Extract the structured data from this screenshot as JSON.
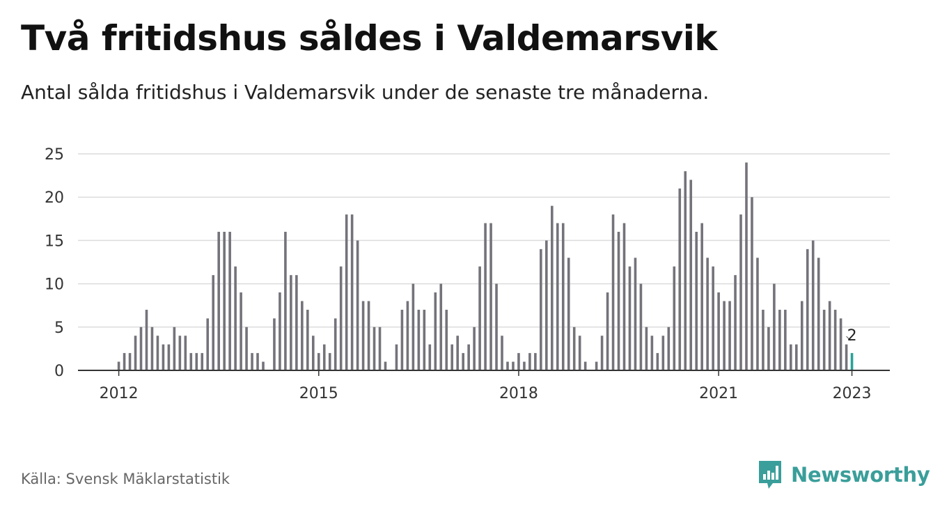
{
  "title": "Två fritidshus såldes i Valdemarsvik",
  "subtitle": "Antal sålda fritidshus i Valdemarsvik under de senaste tre månaderna.",
  "source": "Källa: Svensk Mäklarstatistik",
  "brand": {
    "name": "Newsworthy",
    "icon": "newsworthy-logo-icon",
    "color": "#3a9e9a"
  },
  "colors": {
    "bar": "#74737a",
    "highlight": "#2aa198",
    "grid": "#dcdcdc",
    "axis": "#333333"
  },
  "chart_data": {
    "type": "bar",
    "x_start": "2012-01",
    "x_unit": "month",
    "x_ticks": [
      "2012",
      "2015",
      "2018",
      "2021",
      "2023"
    ],
    "y_ticks": [
      0,
      5,
      10,
      15,
      20,
      25
    ],
    "ylim": [
      0,
      25
    ],
    "grid": true,
    "values": [
      1,
      2,
      2,
      4,
      5,
      7,
      5,
      4,
      3,
      3,
      5,
      4,
      4,
      2,
      2,
      2,
      6,
      11,
      16,
      16,
      16,
      12,
      9,
      5,
      2,
      2,
      1,
      0,
      6,
      9,
      16,
      11,
      11,
      8,
      7,
      4,
      2,
      3,
      2,
      6,
      12,
      18,
      18,
      15,
      8,
      8,
      5,
      5,
      1,
      0,
      3,
      7,
      8,
      10,
      7,
      7,
      3,
      9,
      10,
      7,
      3,
      4,
      2,
      3,
      5,
      12,
      17,
      17,
      10,
      4,
      1,
      1,
      2,
      1,
      2,
      2,
      14,
      15,
      19,
      17,
      17,
      13,
      5,
      4,
      1,
      0,
      1,
      4,
      9,
      18,
      16,
      17,
      12,
      13,
      10,
      5,
      4,
      2,
      4,
      5,
      12,
      21,
      23,
      22,
      16,
      17,
      13,
      12,
      9,
      8,
      8,
      11,
      18,
      24,
      20,
      13,
      7,
      5,
      10,
      7,
      7,
      3,
      3,
      8,
      14,
      15,
      13,
      7,
      8,
      7,
      6,
      3,
      2
    ],
    "highlight_last": true,
    "last_label": "2"
  }
}
